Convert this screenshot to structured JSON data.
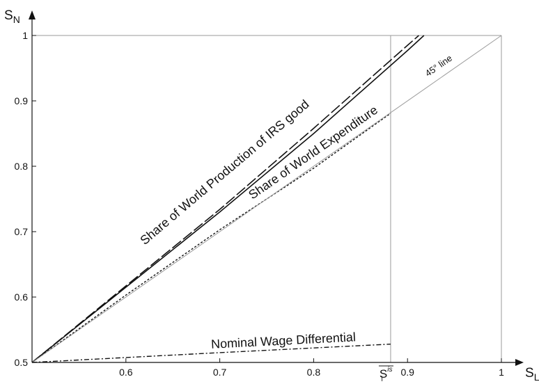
{
  "chart_data": {
    "type": "line",
    "xlabel": {
      "main": "S",
      "sub": "L"
    },
    "ylabel": {
      "main": "S",
      "sub": "N"
    },
    "xlim": [
      0.5,
      1.0
    ],
    "ylim": [
      0.5,
      1.0
    ],
    "x_ticks": [
      {
        "value": 0.6,
        "label": "0.6"
      },
      {
        "value": 0.7,
        "label": "0.7"
      },
      {
        "value": 0.8,
        "label": "0.8"
      },
      {
        "value": 0.9,
        "label": "0.9"
      },
      {
        "value": 1.0,
        "label": "1"
      }
    ],
    "y_ticks": [
      {
        "value": 0.5,
        "label": "0.5"
      },
      {
        "value": 0.6,
        "label": "0.6"
      },
      {
        "value": 0.7,
        "label": "0.7"
      },
      {
        "value": 0.8,
        "label": "0.8"
      },
      {
        "value": 0.9,
        "label": "0.9"
      },
      {
        "value": 1.0,
        "label": "1"
      }
    ],
    "threshold": {
      "x": 0.882,
      "label_main": "S",
      "label_sub": "l",
      "label_sup": "is"
    },
    "reference_lines": [
      {
        "name": "box-top",
        "x": [
          0.5,
          1.0
        ],
        "y": [
          1.0,
          1.0
        ],
        "color": "#9a9a9a"
      },
      {
        "name": "box-right",
        "x": [
          1.0,
          1.0
        ],
        "y": [
          0.5,
          1.0
        ],
        "color": "#9a9a9a"
      }
    ],
    "series": [
      {
        "id": "production-solid",
        "label": "",
        "style": "solid",
        "color": "#111111",
        "width": 1.6,
        "points": [
          [
            0.5,
            0.5
          ],
          [
            0.6,
            0.615
          ],
          [
            0.7,
            0.73
          ],
          [
            0.8,
            0.85
          ],
          [
            0.9,
            0.977
          ],
          [
            0.9175,
            1.0
          ]
        ]
      },
      {
        "id": "production-dashed",
        "label": "Share of World Production of IRS good",
        "style": "longdash",
        "color": "#111111",
        "width": 1.6,
        "points": [
          [
            0.5,
            0.5
          ],
          [
            0.6,
            0.617
          ],
          [
            0.7,
            0.734
          ],
          [
            0.8,
            0.858
          ],
          [
            0.9,
            0.985
          ],
          [
            0.912,
            1.0
          ]
        ]
      },
      {
        "id": "expenditure",
        "label": "Share of World Expenditure",
        "style": "dotted",
        "color": "#111111",
        "width": 1.4,
        "points": [
          [
            0.5,
            0.5
          ],
          [
            0.6,
            0.603
          ],
          [
            0.7,
            0.703
          ],
          [
            0.8,
            0.797
          ],
          [
            0.882,
            0.881
          ]
        ]
      },
      {
        "id": "line-45",
        "label": "45° line",
        "style": "solid",
        "color": "#9a9a9a",
        "width": 1.0,
        "points": [
          [
            0.5,
            0.5
          ],
          [
            1.0,
            1.0
          ]
        ]
      },
      {
        "id": "wage",
        "label": "Nominal Wage Differential",
        "style": "dashdot",
        "color": "#111111",
        "width": 1.4,
        "points": [
          [
            0.5,
            0.5
          ],
          [
            0.7,
            0.515
          ],
          [
            0.882,
            0.528
          ]
        ]
      }
    ],
    "annotations": [
      {
        "series": "production-dashed",
        "text": "Share of World Production of IRS good",
        "x": 0.708,
        "y": 0.786
      },
      {
        "series": "expenditure",
        "text": "Share of World Expenditure",
        "x": 0.802,
        "y": 0.816
      },
      {
        "series": "line-45",
        "text": "45° line",
        "x": 0.935,
        "y": 0.95
      },
      {
        "series": "wage",
        "text": "Nominal Wage Differential",
        "x": 0.768,
        "y": 0.527
      }
    ]
  }
}
